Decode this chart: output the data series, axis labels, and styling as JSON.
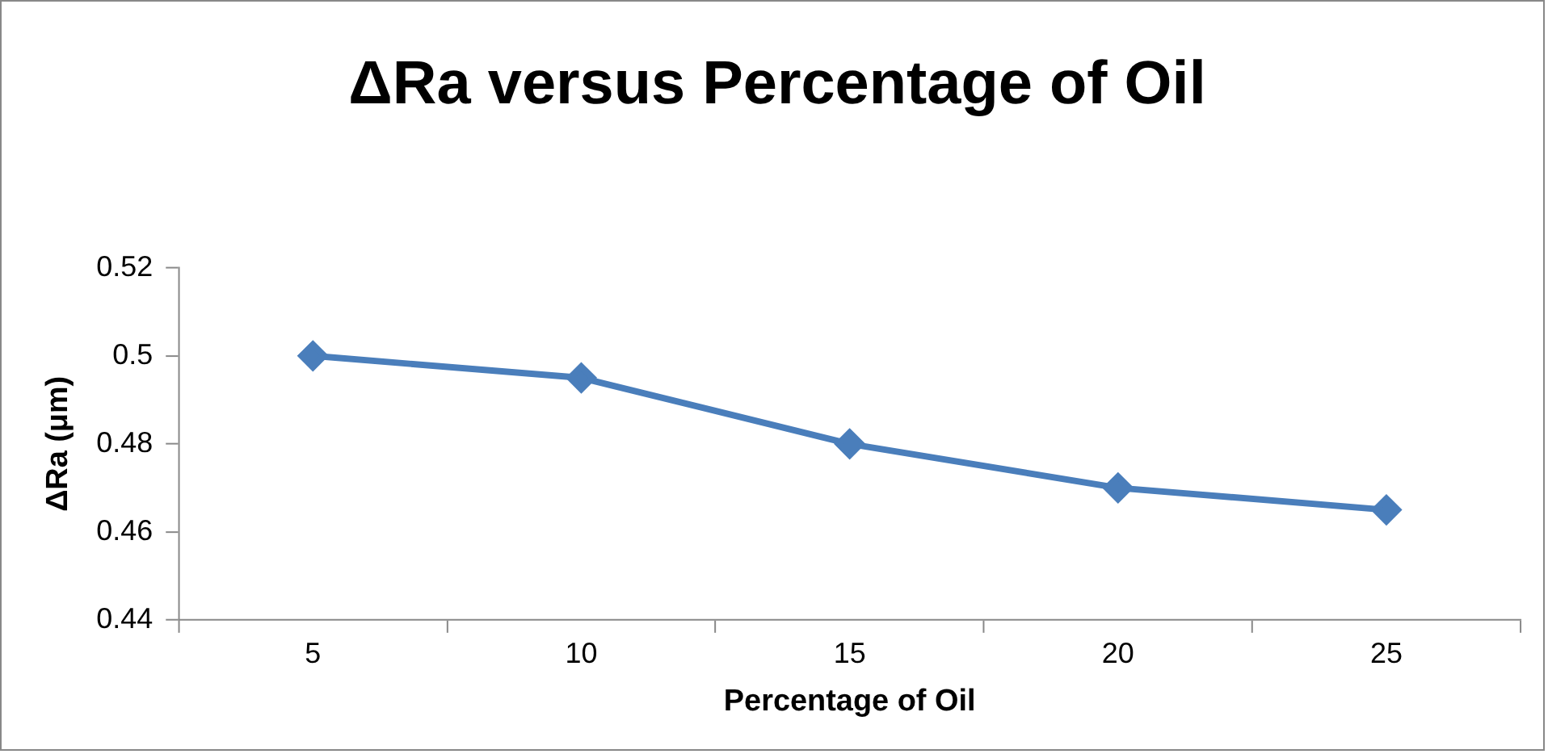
{
  "chart_data": {
    "type": "line",
    "title": "ΔRa versus Percentage of Oil",
    "xlabel": "Percentage of Oil",
    "ylabel": "ΔRa (μm)",
    "categories": [
      "5",
      "10",
      "15",
      "20",
      "25"
    ],
    "series": [
      {
        "color": "#4a7ebb",
        "values": [
          0.5,
          0.495,
          0.48,
          0.47,
          0.465
        ]
      }
    ],
    "ylim": [
      0.44,
      0.52
    ],
    "yticks": [
      0.44,
      0.46,
      0.48,
      0.5,
      0.52
    ],
    "grid": false,
    "legend": false,
    "marker": "diamond",
    "line_style": "solid"
  }
}
